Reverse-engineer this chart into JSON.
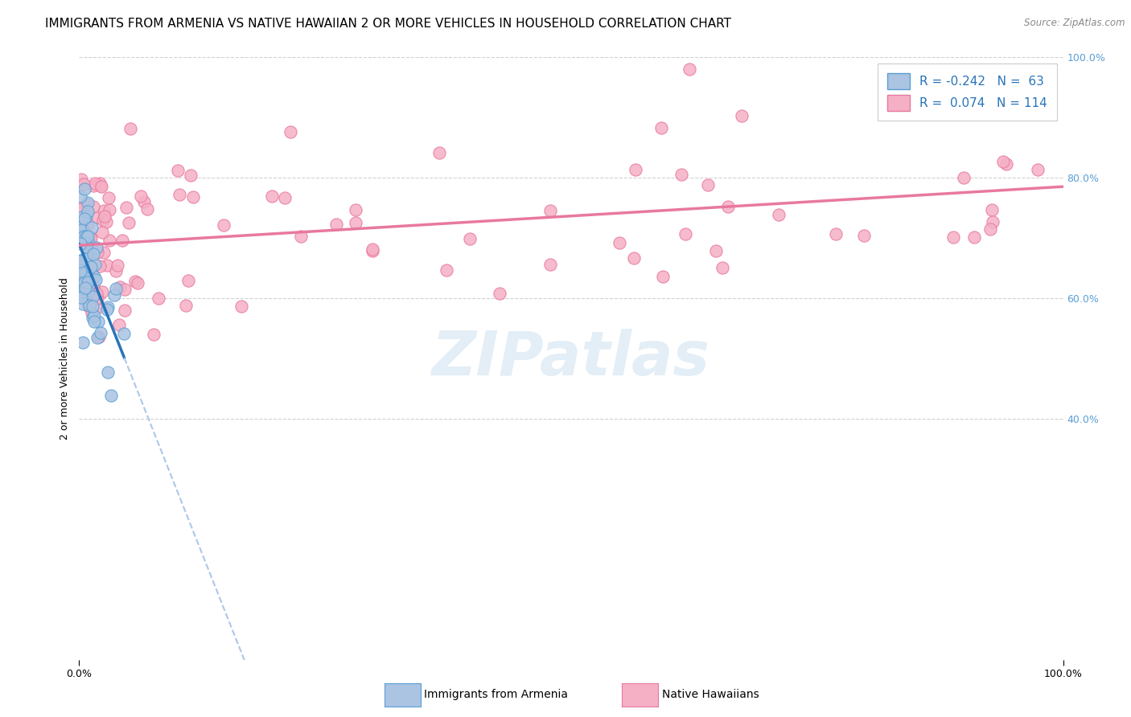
{
  "title": "IMMIGRANTS FROM ARMENIA VS NATIVE HAWAIIAN 2 OR MORE VEHICLES IN HOUSEHOLD CORRELATION CHART",
  "source": "Source: ZipAtlas.com",
  "ylabel": "2 or more Vehicles in Household",
  "xlim": [
    0.0,
    1.0
  ],
  "ylim": [
    0.0,
    1.0
  ],
  "y_tick_labels": [
    "",
    "40.0%",
    "60.0%",
    "80.0%",
    "100.0%"
  ],
  "y_tick_positions": [
    0.0,
    0.4,
    0.6,
    0.8,
    1.0
  ],
  "watermark": "ZIPatlas",
  "armenia_color": "#aac4e2",
  "armenia_edge_color": "#5b9fd4",
  "hawaii_color": "#f5b0c5",
  "hawaii_edge_color": "#e8799e",
  "armenia_R": -0.242,
  "armenia_N": 63,
  "hawaii_R": 0.074,
  "hawaii_N": 114,
  "legend_label_armenia": "Immigrants from Armenia",
  "legend_label_hawaii": "Native Hawaiians",
  "armenia_line_color": "#2874b8",
  "hawaii_line_color": "#e8799e",
  "dashed_line_color": "#aac8e8",
  "background_color": "#ffffff",
  "grid_color": "#cccccc",
  "title_fontsize": 11,
  "axis_label_fontsize": 9,
  "tick_fontsize": 9,
  "right_tick_color": "#5b9fd4",
  "legend_text_color": "#2874b8"
}
